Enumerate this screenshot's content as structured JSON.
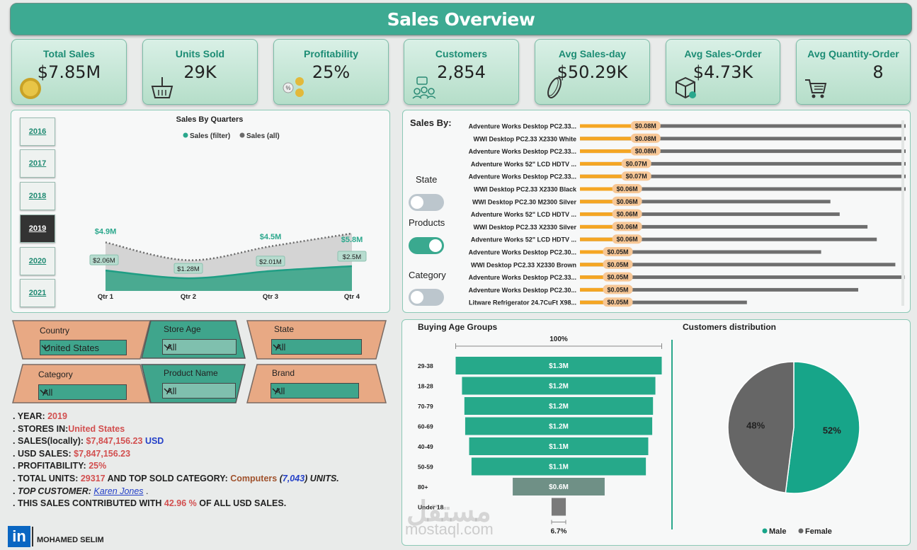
{
  "header": {
    "title": "Sales Overview"
  },
  "kpis": [
    {
      "label": "Total Sales",
      "value": "$7.85M",
      "icon": "coin-icon"
    },
    {
      "label": "Units Sold",
      "value": "29K",
      "icon": "basket-icon"
    },
    {
      "label": "Profitability",
      "value": "25%",
      "icon": "profit-coins-icon"
    },
    {
      "label": "Customers",
      "value": "2,854",
      "icon": "customers-icon"
    },
    {
      "label": "Avg Sales-day",
      "value": "$50.29K",
      "icon": "coin-edge-icon"
    },
    {
      "label": "Avg Sales-Order",
      "value": "$4.73K",
      "icon": "package-icon"
    },
    {
      "label": "Avg Quantity-Order",
      "value": "8",
      "icon": "cart-icon"
    }
  ],
  "years": [
    "2016",
    "2017",
    "2018",
    "2019",
    "2020",
    "2021"
  ],
  "selected_year": "2019",
  "chart_data": [
    {
      "type": "area",
      "title": "Sales By Quarters",
      "categories": [
        "Qtr 1",
        "Qtr 2",
        "Qtr 3",
        "Qtr 4"
      ],
      "series": [
        {
          "name": "Sales (filter)",
          "values": [
            2.06,
            1.28,
            2.01,
            2.5
          ],
          "labels": [
            "$2.06M",
            "$1.28M",
            "$2.01M",
            "$2.5M"
          ],
          "color": "#2aa78c"
        },
        {
          "name": "Sales (all)",
          "values": [
            4.9,
            3.1,
            4.5,
            5.8
          ],
          "labels": [
            "$4.9M",
            "$3.1M",
            "$4.5M",
            "$5.8M"
          ],
          "color": "#6b6b6b"
        }
      ],
      "legend": "top-center"
    },
    {
      "type": "bar",
      "title": "Sales By:",
      "orientation": "horizontal",
      "categories": [
        "Adventure Works Desktop PC2.33...",
        "WWI Desktop PC2.33 X2330 White",
        "Adventure Works Desktop PC2.33...",
        "Adventure Works 52\" LCD HDTV ...",
        "Adventure Works Desktop PC2.33...",
        "WWI Desktop PC2.33 X2330 Black",
        "WWI Desktop PC2.30 M2300 Silver",
        "Adventure Works 52\" LCD HDTV ...",
        "WWI Desktop PC2.33 X2330 Silver",
        "Adventure Works 52\" LCD HDTV ...",
        "Adventure Works Desktop PC2.30...",
        "WWI Desktop PC2.33 X2330 Brown",
        "Adventure Works Desktop PC2.33...",
        "Adventure Works Desktop PC2.30...",
        "Litware Refrigerator 24.7CuFt X98..."
      ],
      "series": [
        {
          "name": "filter",
          "values": [
            0.08,
            0.08,
            0.08,
            0.07,
            0.07,
            0.06,
            0.06,
            0.06,
            0.06,
            0.06,
            0.05,
            0.05,
            0.05,
            0.05,
            0.05
          ],
          "labels": [
            "$0.08M",
            "$0.08M",
            "$0.08M",
            "$0.07M",
            "$0.07M",
            "$0.06M",
            "$0.06M",
            "$0.06M",
            "$0.06M",
            "$0.06M",
            "$0.05M",
            "$0.05M",
            "$0.05M",
            "$0.05M",
            "$0.05M"
          ],
          "color": "#f5a623"
        },
        {
          "name": "all",
          "values": [
            0.37,
            0.42,
            0.4,
            0.41,
            0.39,
            0.37,
            0.27,
            0.28,
            0.31,
            0.32,
            0.26,
            0.34,
            0.35,
            0.3,
            0.18
          ],
          "color": "#6e6e6e"
        }
      ]
    },
    {
      "type": "bar",
      "title": "Buying Age Groups",
      "orientation": "funnel",
      "top_label": "100%",
      "bottom_label": "6.7%",
      "categories": [
        "29-38",
        "18-28",
        "70-79",
        "60-69",
        "40-49",
        "50-59",
        "80+",
        "Under 18"
      ],
      "values": [
        1.3,
        1.22,
        1.19,
        1.18,
        1.13,
        1.1,
        0.58,
        0.09
      ],
      "labels": [
        "$1.3M",
        "$1.2M",
        "$1.2M",
        "$1.2M",
        "$1.1M",
        "$1.1M",
        "$0.6M",
        ""
      ]
    },
    {
      "type": "pie",
      "title": "Customers distribution",
      "categories": [
        "Male",
        "Female"
      ],
      "values": [
        52,
        48
      ],
      "labels": [
        "52%",
        "48%"
      ],
      "colors": [
        "#17a589",
        "#666666"
      ],
      "legend": "bottom"
    }
  ],
  "sales_by_toggles": [
    {
      "label": "State",
      "on": false
    },
    {
      "label": "Products",
      "on": true
    },
    {
      "label": "Category",
      "on": false
    }
  ],
  "filters": {
    "country": {
      "label": "Country",
      "value": "United States"
    },
    "store_age": {
      "label": "Store Age",
      "value": "All"
    },
    "state": {
      "label": "State",
      "value": "All"
    },
    "category": {
      "label": "Category",
      "value": "All"
    },
    "product_name": {
      "label": "Product Name",
      "value": "All"
    },
    "brand": {
      "label": "Brand",
      "value": "All"
    }
  },
  "summary": {
    "year_label": "YEAR: ",
    "year": "2019",
    "stores_label": "STORES IN:",
    "stores": "United States",
    "sales_local_label": "SALES(locally): ",
    "sales_local": "$7,847,156.23",
    "sales_local_currency": "USD",
    "usd_sales_label": "USD SALES: ",
    "usd_sales": "$7,847,156.23",
    "profit_label": "PROFITABILITY: ",
    "profit": "25%",
    "units_label": "TOTAL UNITS: ",
    "units": "29317",
    "top_cat_label": "  AND TOP SOLD CATEGORY: ",
    "top_cat": "Computers",
    "top_cat_units_open": " (",
    "top_cat_units": "7,043",
    "top_cat_units_close": ") UNITS.",
    "top_customer_label": "TOP CUSTOMER: ",
    "top_customer": "Karen Jones",
    "top_customer_end": " .",
    "contrib_label": "THIS SALES CONTRIBUTED WITH ",
    "contrib": "42.96 %",
    "contrib_end": " OF ALL USD SALES."
  },
  "watermark": {
    "arabic": "مستقل",
    "latin": "mostaql.com"
  },
  "author": {
    "badge": "in",
    "name": "MOHAMED SELIM"
  }
}
